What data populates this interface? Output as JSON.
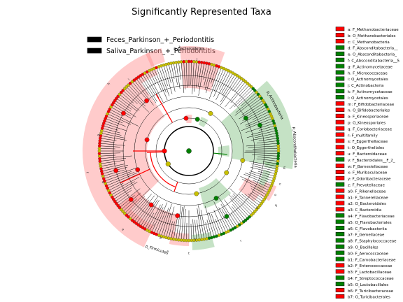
{
  "chart_data": {
    "type": "cladogram",
    "title": "Significantly Represented Taxa",
    "groups": [
      {
        "name": "Feces_Parkinson_+_Periodontitis",
        "color": "#ff0000"
      },
      {
        "name": "Saliva_Parkinson_+_Periodontitis",
        "color": "#008000"
      }
    ],
    "taxa": [
      {
        "key": "a",
        "label": "a: F_Methanobacteriaceae",
        "group": 0
      },
      {
        "key": "b",
        "label": "b: O_Methanobacteriales",
        "group": 0
      },
      {
        "key": "c",
        "label": "c: C_Methanobacteria",
        "group": 0
      },
      {
        "key": "d",
        "label": "d: F_Absconditabacteria__",
        "group": 1
      },
      {
        "key": "e",
        "label": "e: O_Absconditabacteria_",
        "group": 1
      },
      {
        "key": "f",
        "label": "f: C_Absconditabacteria__5",
        "group": 1
      },
      {
        "key": "g",
        "label": "g: F_Actinomycetaceae",
        "group": 1
      },
      {
        "key": "h",
        "label": "h: F_Micrococcaceae",
        "group": 1
      },
      {
        "key": "i",
        "label": "i: O_Actinomycetales",
        "group": 1
      },
      {
        "key": "j",
        "label": "j: C_Actinobacteria",
        "group": 1
      },
      {
        "key": "k",
        "label": "k: F_Actinomycetaceae",
        "group": 1
      },
      {
        "key": "l",
        "label": "l: O_Actinomycetales",
        "group": 1
      },
      {
        "key": "m",
        "label": "m: F_Bifidobacteriaceae",
        "group": 0
      },
      {
        "key": "n",
        "label": "n: O_Bifidobacteriales",
        "group": 0
      },
      {
        "key": "o",
        "label": "o: F_Kineosporiaceae",
        "group": 0
      },
      {
        "key": "p",
        "label": "p: O_Kineosporiales",
        "group": 0
      },
      {
        "key": "q",
        "label": "q: F_Coriobacteriaceae",
        "group": 0
      },
      {
        "key": "r",
        "label": "r: F_multifamily",
        "group": 0
      },
      {
        "key": "s",
        "label": "s: F_Eggerthellaceae",
        "group": 0
      },
      {
        "key": "t",
        "label": "t: O_Eggerthellales",
        "group": 0
      },
      {
        "key": "u",
        "label": "u: F_Bacteroidaceae",
        "group": 0
      },
      {
        "key": "v",
        "label": "v: F_Bacteroidales__F_2_",
        "group": 1
      },
      {
        "key": "w",
        "label": "w: F_Barnesiellaceae",
        "group": 0
      },
      {
        "key": "x",
        "label": "x: F_Muribaculaceae",
        "group": 0
      },
      {
        "key": "y",
        "label": "y: F_Odoribacteraceae",
        "group": 0
      },
      {
        "key": "z",
        "label": "z: F_Prevotellaceae",
        "group": 1
      },
      {
        "key": "a0",
        "label": "a0: F_Rikenellaceae",
        "group": 0
      },
      {
        "key": "a1",
        "label": "a1: F_Tannerellaceae",
        "group": 0
      },
      {
        "key": "a2",
        "label": "a2: O_Bacteroidales",
        "group": 0
      },
      {
        "key": "a3",
        "label": "a3: C_Bacteroidia",
        "group": 0
      },
      {
        "key": "a4",
        "label": "a4: F_Flavobacteriaceae",
        "group": 1
      },
      {
        "key": "a5",
        "label": "a5: O_Flavobacteriales",
        "group": 1
      },
      {
        "key": "a6",
        "label": "a6: C_Flavobacteriia",
        "group": 1
      },
      {
        "key": "a7",
        "label": "a7: F_Gemellaceae",
        "group": 1
      },
      {
        "key": "a8",
        "label": "a8: F_Staphylococcaceae",
        "group": 1
      },
      {
        "key": "a9",
        "label": "a9: O_Bacillales",
        "group": 1
      },
      {
        "key": "b0",
        "label": "b0: F_Aerococcaceae",
        "group": 1
      },
      {
        "key": "b1",
        "label": "b1: F_Carnobacteriaceae",
        "group": 1
      },
      {
        "key": "b2",
        "label": "b2: F_Enterococcaceae",
        "group": 0
      },
      {
        "key": "b3",
        "label": "b3: F_Lactobacillaceae",
        "group": 0
      },
      {
        "key": "b4",
        "label": "b4: F_Streptococcaceae",
        "group": 1
      },
      {
        "key": "b5",
        "label": "b5: O_Lactobacillales",
        "group": 1
      },
      {
        "key": "b6",
        "label": "b6: F_Turicibacteraceae",
        "group": 0
      },
      {
        "key": "b7",
        "label": "b7: O_Turicibacterales",
        "group": 0
      }
    ],
    "clade_labels": [
      {
        "text": "p_Bacteroidetes",
        "group": 0
      },
      {
        "text": "p_Actinobacteria",
        "group": 1
      },
      {
        "text": "p_Absconditabacteria",
        "group": 1
      },
      {
        "text": "p_Firmicutes",
        "group": 0
      }
    ]
  }
}
